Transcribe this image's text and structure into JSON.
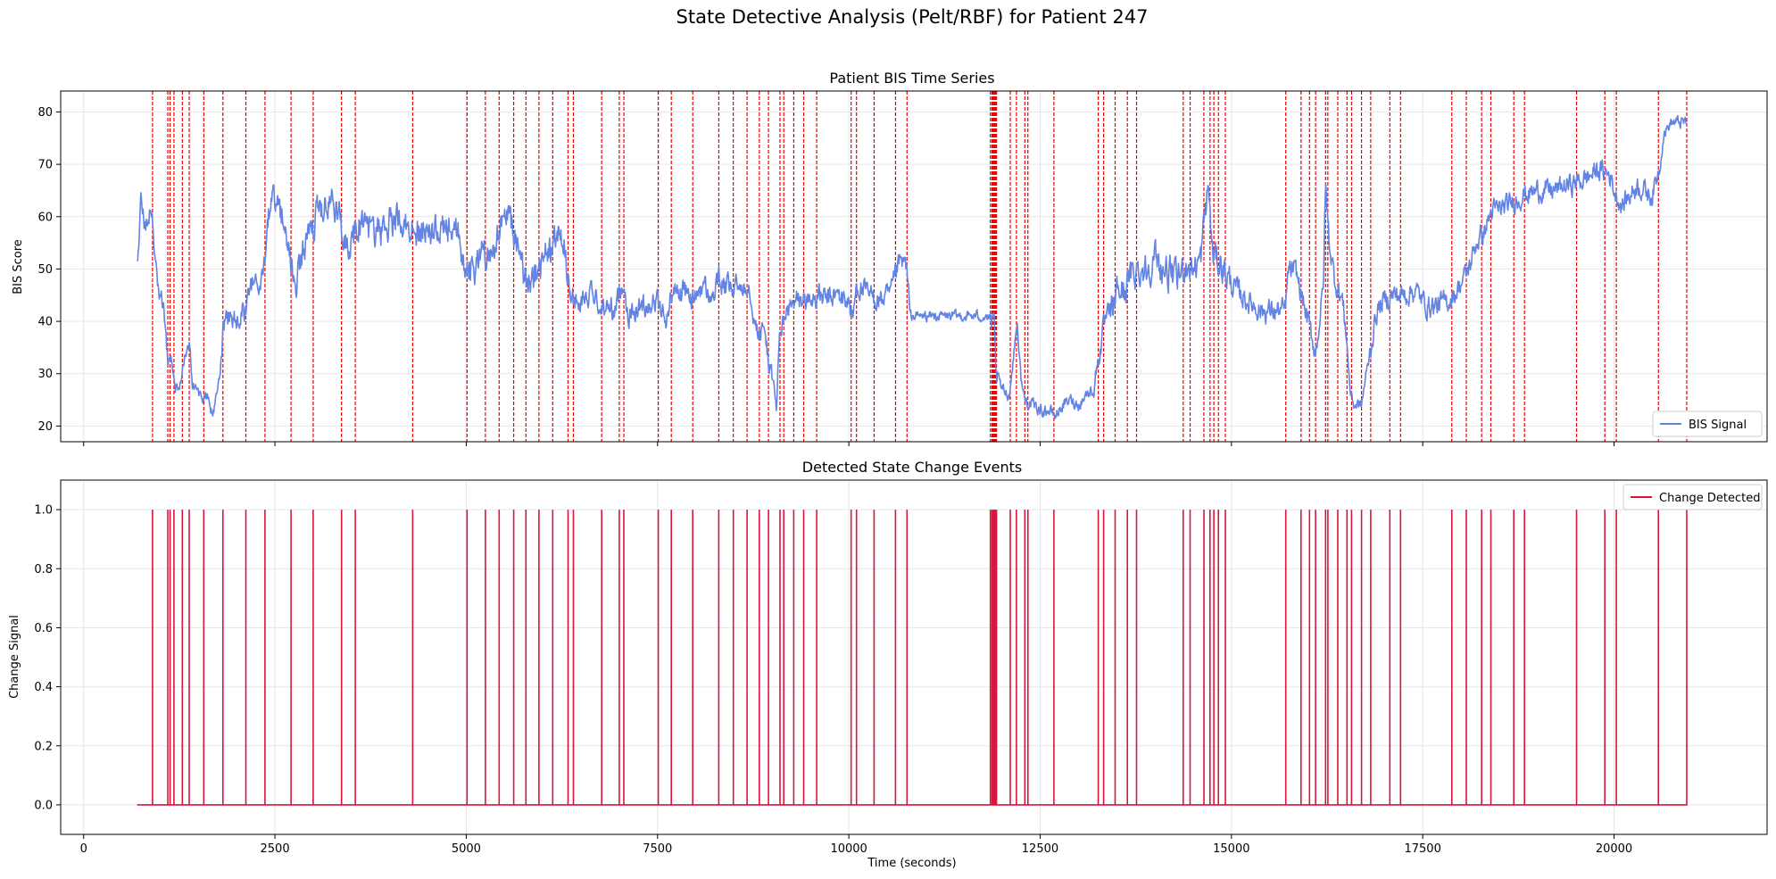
{
  "figure": {
    "title": "State Detective Analysis (Pelt/RBF) for Patient 247"
  },
  "colors": {
    "bis": "#6484e4",
    "change": "#dc143c",
    "marker": "#ee0000",
    "grid": "#e6e6e6"
  },
  "chart_data": [
    {
      "type": "line",
      "title": "Patient BIS Time Series",
      "xlabel": "",
      "ylabel": "BIS Score",
      "xlim": [
        -300,
        22000
      ],
      "ylim": [
        17,
        84
      ],
      "yticks": [
        20,
        30,
        40,
        50,
        60,
        70,
        80
      ],
      "xticks": [
        0,
        2500,
        5000,
        7500,
        10000,
        12500,
        15000,
        17500,
        20000
      ],
      "grid": true,
      "legend": {
        "position": "lower right",
        "entries": [
          "BIS Signal"
        ]
      },
      "series": [
        {
          "name": "BIS Signal",
          "profile": [
            [
              700,
              50
            ],
            [
              750,
              63
            ],
            [
              800,
              58
            ],
            [
              850,
              60
            ],
            [
              880,
              62
            ],
            [
              920,
              55
            ],
            [
              960,
              48
            ],
            [
              1000,
              45
            ],
            [
              1050,
              43
            ],
            [
              1080,
              37
            ],
            [
              1100,
              33
            ],
            [
              1150,
              33
            ],
            [
              1200,
              27
            ],
            [
              1280,
              29
            ],
            [
              1340,
              34
            ],
            [
              1380,
              36
            ],
            [
              1420,
              28
            ],
            [
              1480,
              27
            ],
            [
              1550,
              25
            ],
            [
              1620,
              26
            ],
            [
              1680,
              22
            ],
            [
              1720,
              24
            ],
            [
              1780,
              30
            ],
            [
              1820,
              38
            ],
            [
              1900,
              41
            ],
            [
              2000,
              40
            ],
            [
              2100,
              42
            ],
            [
              2200,
              47
            ],
            [
              2300,
              47
            ],
            [
              2380,
              52
            ],
            [
              2420,
              60
            ],
            [
              2500,
              63
            ],
            [
              2600,
              60
            ],
            [
              2700,
              53
            ],
            [
              2760,
              46
            ],
            [
              2850,
              53
            ],
            [
              2950,
              56
            ],
            [
              3050,
              60
            ],
            [
              3150,
              62
            ],
            [
              3250,
              63
            ],
            [
              3350,
              60
            ],
            [
              3400,
              57
            ],
            [
              3500,
              55
            ],
            [
              3600,
              59
            ],
            [
              3700,
              57
            ],
            [
              3900,
              58
            ],
            [
              4100,
              60
            ],
            [
              4300,
              58
            ],
            [
              4500,
              57
            ],
            [
              4700,
              57
            ],
            [
              4900,
              56
            ],
            [
              5000,
              50
            ],
            [
              5100,
              50
            ],
            [
              5200,
              53
            ],
            [
              5300,
              53
            ],
            [
              5450,
              58
            ],
            [
              5550,
              60
            ],
            [
              5650,
              56
            ],
            [
              5750,
              49
            ],
            [
              5850,
              47
            ],
            [
              6000,
              52
            ],
            [
              6100,
              53
            ],
            [
              6200,
              57
            ],
            [
              6300,
              53
            ],
            [
              6380,
              43
            ],
            [
              6450,
              44
            ],
            [
              6600,
              45
            ],
            [
              6700,
              44
            ],
            [
              6800,
              43
            ],
            [
              6950,
              42
            ],
            [
              7050,
              48
            ],
            [
              7120,
              41
            ],
            [
              7300,
              43
            ],
            [
              7500,
              44
            ],
            [
              7600,
              40
            ],
            [
              7700,
              46
            ],
            [
              7850,
              46
            ],
            [
              7950,
              44
            ],
            [
              8100,
              47
            ],
            [
              8200,
              44
            ],
            [
              8300,
              48
            ],
            [
              8450,
              46
            ],
            [
              8600,
              47
            ],
            [
              8700,
              47
            ],
            [
              8800,
              38
            ],
            [
              8900,
              38
            ],
            [
              8950,
              33
            ],
            [
              9050,
              24
            ],
            [
              9100,
              38
            ],
            [
              9200,
              42
            ],
            [
              9350,
              44
            ],
            [
              9500,
              44
            ],
            [
              9600,
              45
            ],
            [
              9700,
              44
            ],
            [
              9850,
              45
            ],
            [
              10000,
              44
            ],
            [
              10050,
              40
            ],
            [
              10100,
              47
            ],
            [
              10250,
              45
            ],
            [
              10400,
              44
            ],
            [
              10550,
              45
            ],
            [
              10650,
              51
            ],
            [
              10750,
              51
            ],
            [
              10800,
              41
            ],
            [
              11000,
              41
            ],
            [
              11200,
              41
            ],
            [
              11400,
              41
            ],
            [
              11600,
              41
            ],
            [
              11800,
              41
            ],
            [
              11900,
              39
            ],
            [
              11920,
              30
            ],
            [
              12000,
              27
            ],
            [
              12100,
              26
            ],
            [
              12200,
              40
            ],
            [
              12250,
              29
            ],
            [
              12300,
              25
            ],
            [
              12400,
              24
            ],
            [
              12500,
              23
            ],
            [
              12600,
              23
            ],
            [
              12700,
              22
            ],
            [
              12800,
              24
            ],
            [
              12900,
              25
            ],
            [
              13000,
              24
            ],
            [
              13100,
              26
            ],
            [
              13200,
              27
            ],
            [
              13250,
              32
            ],
            [
              13300,
              36
            ],
            [
              13350,
              40
            ],
            [
              13450,
              42
            ],
            [
              13500,
              46
            ],
            [
              13600,
              46
            ],
            [
              13700,
              49
            ],
            [
              13800,
              50
            ],
            [
              13900,
              50
            ],
            [
              14000,
              52
            ],
            [
              14100,
              50
            ],
            [
              14200,
              49
            ],
            [
              14300,
              48
            ],
            [
              14400,
              51
            ],
            [
              14500,
              50
            ],
            [
              14600,
              52
            ],
            [
              14650,
              60
            ],
            [
              14700,
              66
            ],
            [
              14750,
              53
            ],
            [
              14850,
              51
            ],
            [
              14900,
              50
            ],
            [
              15000,
              47
            ],
            [
              15200,
              44
            ],
            [
              15400,
              42
            ],
            [
              15600,
              42
            ],
            [
              15700,
              42
            ],
            [
              15750,
              50
            ],
            [
              15850,
              49
            ],
            [
              15950,
              43
            ],
            [
              16050,
              37
            ],
            [
              16100,
              34
            ],
            [
              16150,
              40
            ],
            [
              16200,
              46
            ],
            [
              16230,
              66
            ],
            [
              16280,
              55
            ],
            [
              16350,
              48
            ],
            [
              16450,
              44
            ],
            [
              16500,
              38
            ],
            [
              16550,
              27
            ],
            [
              16600,
              24
            ],
            [
              16700,
              24
            ],
            [
              16750,
              29
            ],
            [
              16800,
              33
            ],
            [
              16900,
              42
            ],
            [
              17000,
              44
            ],
            [
              17100,
              45
            ],
            [
              17250,
              45
            ],
            [
              17400,
              46
            ],
            [
              17550,
              43
            ],
            [
              17700,
              43
            ],
            [
              17850,
              44
            ],
            [
              17950,
              46
            ],
            [
              18100,
              50
            ],
            [
              18200,
              55
            ],
            [
              18300,
              57
            ],
            [
              18400,
              61
            ],
            [
              18600,
              62
            ],
            [
              18800,
              64
            ],
            [
              19000,
              65
            ],
            [
              19200,
              65
            ],
            [
              19400,
              66
            ],
            [
              19600,
              67
            ],
            [
              19800,
              69
            ],
            [
              19950,
              68
            ],
            [
              20000,
              65
            ],
            [
              20100,
              62
            ],
            [
              20300,
              66
            ],
            [
              20500,
              64
            ],
            [
              20600,
              70
            ],
            [
              20650,
              76
            ],
            [
              20750,
              78
            ],
            [
              20850,
              78
            ],
            [
              20950,
              78
            ]
          ]
        }
      ]
    },
    {
      "type": "line",
      "title": "Detected State Change Events",
      "xlabel": "Time (seconds)",
      "ylabel": "Change Signal",
      "xlim": [
        -300,
        22000
      ],
      "ylim": [
        -0.1,
        1.1
      ],
      "yticks": [
        "0.0",
        "0.2",
        "0.4",
        "0.6",
        "0.8",
        "1.0"
      ],
      "xticks": [
        0,
        2500,
        5000,
        7500,
        10000,
        12500,
        15000,
        17500,
        20000
      ],
      "grid": true,
      "legend": {
        "position": "upper right",
        "entries": [
          "Change Detected"
        ]
      },
      "x_range": [
        700,
        20950
      ],
      "series": [
        {
          "name": "Change Detected",
          "change_points": [
            900,
            1100,
            1130,
            1180,
            1290,
            1380,
            1570,
            1820,
            2120,
            2370,
            2710,
            3000,
            3370,
            3550,
            4300,
            5010,
            5250,
            5430,
            5620,
            5780,
            5950,
            6130,
            6330,
            6400,
            6770,
            7000,
            7060,
            7510,
            7680,
            7960,
            8300,
            8490,
            8670,
            8830,
            8950,
            9100,
            9150,
            9280,
            9410,
            9580,
            10030,
            10100,
            10330,
            10610,
            10760,
            11850,
            11870,
            11880,
            11890,
            11900,
            11910,
            11920,
            11930,
            12110,
            12190,
            12300,
            12340,
            12680,
            13260,
            13330,
            13480,
            13640,
            13760,
            14370,
            14460,
            14640,
            14720,
            14770,
            14830,
            14920,
            15710,
            15910,
            16020,
            16100,
            16230,
            16260,
            16390,
            16510,
            16570,
            16700,
            16820,
            17070,
            17210,
            17880,
            18070,
            18270,
            18390,
            18690,
            18830,
            19510,
            19880,
            20030,
            20580,
            20950
          ]
        }
      ]
    }
  ]
}
